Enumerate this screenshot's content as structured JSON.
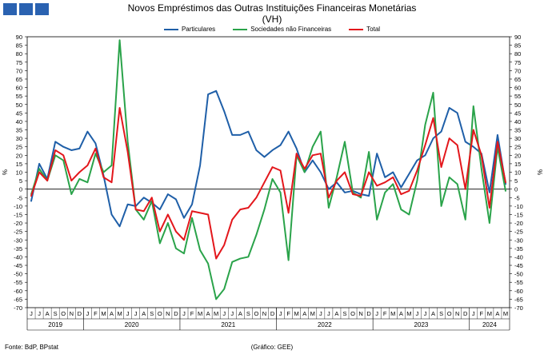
{
  "chart_data": {
    "type": "line",
    "title": "Novos Empréstimos das Outras Instituições Financeiras Monetárias",
    "subtitle": "(VH)",
    "ylabel_left": "%",
    "ylabel_right": "%",
    "ylim": [
      -70,
      90
    ],
    "ytick_step": 5,
    "grid": false,
    "legend_position": "top",
    "x": [
      "J",
      "J",
      "A",
      "S",
      "O",
      "N",
      "D",
      "J",
      "F",
      "M",
      "A",
      "M",
      "J",
      "J",
      "A",
      "S",
      "O",
      "N",
      "D",
      "J",
      "F",
      "M",
      "A",
      "M",
      "J",
      "J",
      "A",
      "S",
      "O",
      "N",
      "D",
      "J",
      "F",
      "M",
      "A",
      "M",
      "J",
      "J",
      "A",
      "S",
      "O",
      "N",
      "D",
      "J",
      "F",
      "M",
      "A",
      "M",
      "J",
      "J",
      "A",
      "S",
      "O",
      "N",
      "D",
      "J",
      "F",
      "M",
      "A",
      "M"
    ],
    "year_labels": [
      {
        "label": "2019",
        "start": 0,
        "end": 6
      },
      {
        "label": "2020",
        "start": 7,
        "end": 18
      },
      {
        "label": "2021",
        "start": 19,
        "end": 30
      },
      {
        "label": "2022",
        "start": 31,
        "end": 42
      },
      {
        "label": "2023",
        "start": 43,
        "end": 54
      },
      {
        "label": "2024",
        "start": 55,
        "end": 59
      }
    ],
    "series": [
      {
        "name": "Particulares",
        "color": "#1f5fa8",
        "values": [
          -7,
          15,
          6,
          28,
          25,
          23,
          24,
          34,
          27,
          8,
          -15,
          -22,
          -9,
          -10,
          -5,
          -8,
          -12,
          -3,
          -6,
          -17,
          -9,
          14,
          56,
          58,
          46,
          32,
          32,
          34,
          23,
          19,
          23,
          26,
          34,
          24,
          10,
          17,
          10,
          0,
          4,
          -2,
          -1,
          -3,
          -4,
          21,
          7,
          10,
          1,
          9,
          17,
          20,
          30,
          34,
          48,
          45,
          28,
          25,
          21,
          -2,
          32,
          3
        ]
      },
      {
        "name": "Sociedades não Financeiras",
        "color": "#2aa34a",
        "values": [
          -3,
          12,
          5,
          20,
          17,
          -3,
          6,
          4,
          21,
          10,
          14,
          88,
          28,
          -12,
          -18,
          -7,
          -32,
          -20,
          -35,
          -38,
          -17,
          -36,
          -44,
          -65,
          -59,
          -43,
          -41,
          -40,
          -27,
          -12,
          6,
          -2,
          -42,
          20,
          10,
          25,
          34,
          -11,
          7,
          28,
          -2,
          -5,
          22,
          -18,
          -2,
          3,
          -12,
          -15,
          5,
          38,
          57,
          -10,
          7,
          3,
          -18,
          49,
          12,
          -20,
          25,
          -1
        ]
      },
      {
        "name": "Total",
        "color": "#e3171c",
        "values": [
          -4,
          10,
          5,
          23,
          20,
          5,
          10,
          14,
          24,
          7,
          4,
          48,
          22,
          -12,
          -13,
          -5,
          -25,
          -15,
          -25,
          -30,
          -13,
          -14,
          -15,
          -41,
          -33,
          -18,
          -12,
          -11,
          -5,
          4,
          13,
          11,
          -14,
          21,
          12,
          20,
          21,
          -5,
          5,
          10,
          -3,
          -4,
          10,
          2,
          4,
          7,
          -3,
          -1,
          11,
          26,
          42,
          13,
          30,
          26,
          0,
          35,
          20,
          -11,
          28,
          4
        ]
      }
    ]
  },
  "header": {
    "logo": "bdp-logo-squares"
  },
  "footer": {
    "source": "Fonte: BdP, BPstat",
    "credit": "(Gráfico: GEE)"
  }
}
